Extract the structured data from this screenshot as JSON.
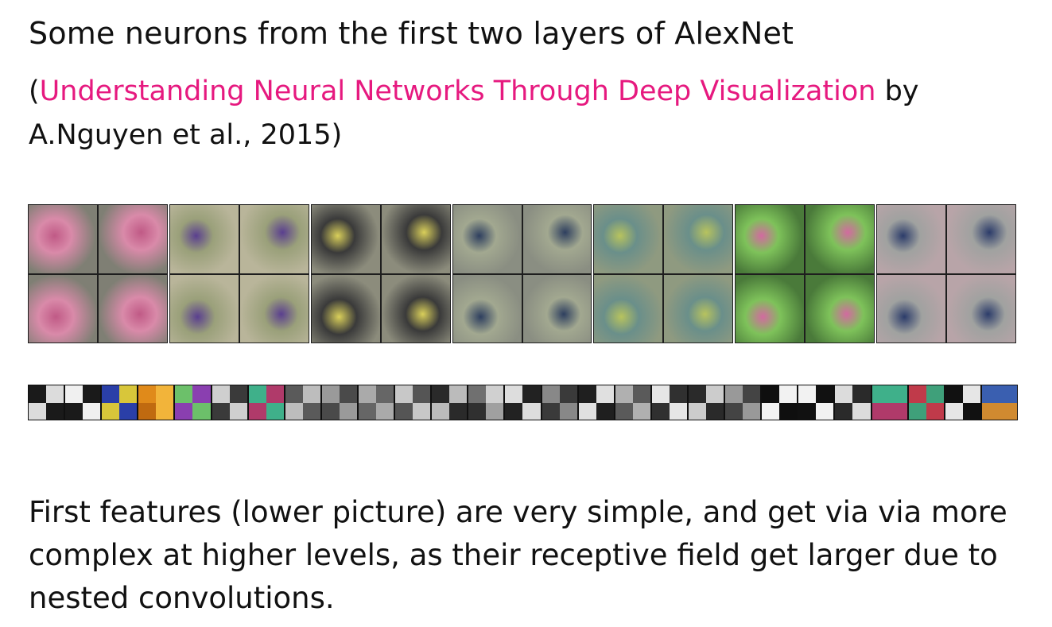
{
  "slide": {
    "title": "Some neurons from the first two layers of AlexNet",
    "citation": {
      "open_paren": "(",
      "link_text": "Understanding Neural Networks Through Deep Visualization",
      "after_link": " by",
      "authors": "A.Nguyen et al., 2015)"
    },
    "body": "First features (lower picture) are very simple, and get via via more complex at higher levels, as their receptive field get larger due to nested convolutions."
  },
  "colors": {
    "link": "#e6197f",
    "text": "#111111"
  },
  "neuron_groups": [
    {
      "name": "pink-swirl",
      "colors": [
        "#c05a86",
        "#d98aa9",
        "#7f7f74"
      ]
    },
    {
      "name": "purple-blue",
      "colors": [
        "#5a3f8f",
        "#9aa07a",
        "#b9b59a"
      ]
    },
    {
      "name": "striped-yellow",
      "colors": [
        "#d9cf5a",
        "#3a3a3a",
        "#8c8c7c"
      ]
    },
    {
      "name": "dark-curve",
      "colors": [
        "#2e3f5f",
        "#a2a890",
        "#8a8e82"
      ]
    },
    {
      "name": "green-yellow",
      "colors": [
        "#b7c35e",
        "#6a8f8a",
        "#8f9a80"
      ]
    },
    {
      "name": "pink-dots",
      "colors": [
        "#d26aa0",
        "#7ec25a",
        "#4a7a3a"
      ]
    },
    {
      "name": "blue-streak",
      "colors": [
        "#2c3c6a",
        "#a0a2a0",
        "#b8a4a8"
      ]
    }
  ],
  "filters": [
    {
      "tl": "#1a1a1a",
      "tr": "#dcdcdc",
      "bl": "#dcdcdc",
      "br": "#1a1a1a"
    },
    {
      "tl": "#f0f0f0",
      "tr": "#1a1a1a",
      "bl": "#1a1a1a",
      "br": "#f0f0f0"
    },
    {
      "tl": "#2a3fa8",
      "tr": "#d8c63a",
      "bl": "#d8c63a",
      "br": "#2a3fa8"
    },
    {
      "tl": "#e08a1a",
      "tr": "#f2b43a",
      "bl": "#c06a10",
      "br": "#f2b43a"
    },
    {
      "tl": "#6cc06a",
      "tr": "#8a3fb0",
      "bl": "#8a3fb0",
      "br": "#6cc06a"
    },
    {
      "tl": "#cfcfcf",
      "tr": "#3a3a3a",
      "bl": "#3a3a3a",
      "br": "#cfcfcf"
    },
    {
      "tl": "#3fb08a",
      "tr": "#b03a6a",
      "bl": "#b03a6a",
      "br": "#3fb08a"
    },
    {
      "tl": "#5a5a5a",
      "tr": "#bdbdbd",
      "bl": "#bdbdbd",
      "br": "#5a5a5a"
    },
    {
      "tl": "#9a9a9a",
      "tr": "#4a4a4a",
      "bl": "#4a4a4a",
      "br": "#9a9a9a"
    },
    {
      "tl": "#aaaaaa",
      "tr": "#666666",
      "bl": "#666666",
      "br": "#aaaaaa"
    },
    {
      "tl": "#c8c8c8",
      "tr": "#555555",
      "bl": "#555555",
      "br": "#c8c8c8"
    },
    {
      "tl": "#2a2a2a",
      "tr": "#bbbbbb",
      "bl": "#bbbbbb",
      "br": "#2a2a2a"
    },
    {
      "tl": "#707070",
      "tr": "#d0d0d0",
      "bl": "#303030",
      "br": "#a0a0a0"
    },
    {
      "tl": "#dddddd",
      "tr": "#222222",
      "bl": "#222222",
      "br": "#dddddd"
    },
    {
      "tl": "#888888",
      "tr": "#3a3a3a",
      "bl": "#3a3a3a",
      "br": "#888888"
    },
    {
      "tl": "#1f1f1f",
      "tr": "#e0e0e0",
      "bl": "#e0e0e0",
      "br": "#1f1f1f"
    },
    {
      "tl": "#b0b0b0",
      "tr": "#5a5a5a",
      "bl": "#5a5a5a",
      "br": "#b0b0b0"
    },
    {
      "tl": "#e6e6e6",
      "tr": "#303030",
      "bl": "#303030",
      "br": "#e6e6e6"
    },
    {
      "tl": "#2a2a2a",
      "tr": "#cccccc",
      "bl": "#cccccc",
      "br": "#2a2a2a"
    },
    {
      "tl": "#999999",
      "tr": "#444444",
      "bl": "#444444",
      "br": "#999999"
    },
    {
      "tl": "#0f0f0f",
      "tr": "#f2f2f2",
      "bl": "#f2f2f2",
      "br": "#0f0f0f"
    },
    {
      "tl": "#f2f2f2",
      "tr": "#111111",
      "bl": "#111111",
      "br": "#f2f2f2"
    },
    {
      "tl": "#dcdcdc",
      "tr": "#2a2a2a",
      "bl": "#2a2a2a",
      "br": "#dcdcdc"
    },
    {
      "tl": "#3fb08a",
      "tr": "#3fb08a",
      "bl": "#b03a6a",
      "br": "#b03a6a"
    },
    {
      "tl": "#c03a4a",
      "tr": "#3fa07a",
      "bl": "#3fa07a",
      "br": "#c03a4a"
    },
    {
      "tl": "#111111",
      "tr": "#e6e6e6",
      "bl": "#e6e6e6",
      "br": "#111111"
    },
    {
      "tl": "#3a5fb0",
      "tr": "#3a5fb0",
      "bl": "#d08a30",
      "br": "#d08a30"
    }
  ]
}
